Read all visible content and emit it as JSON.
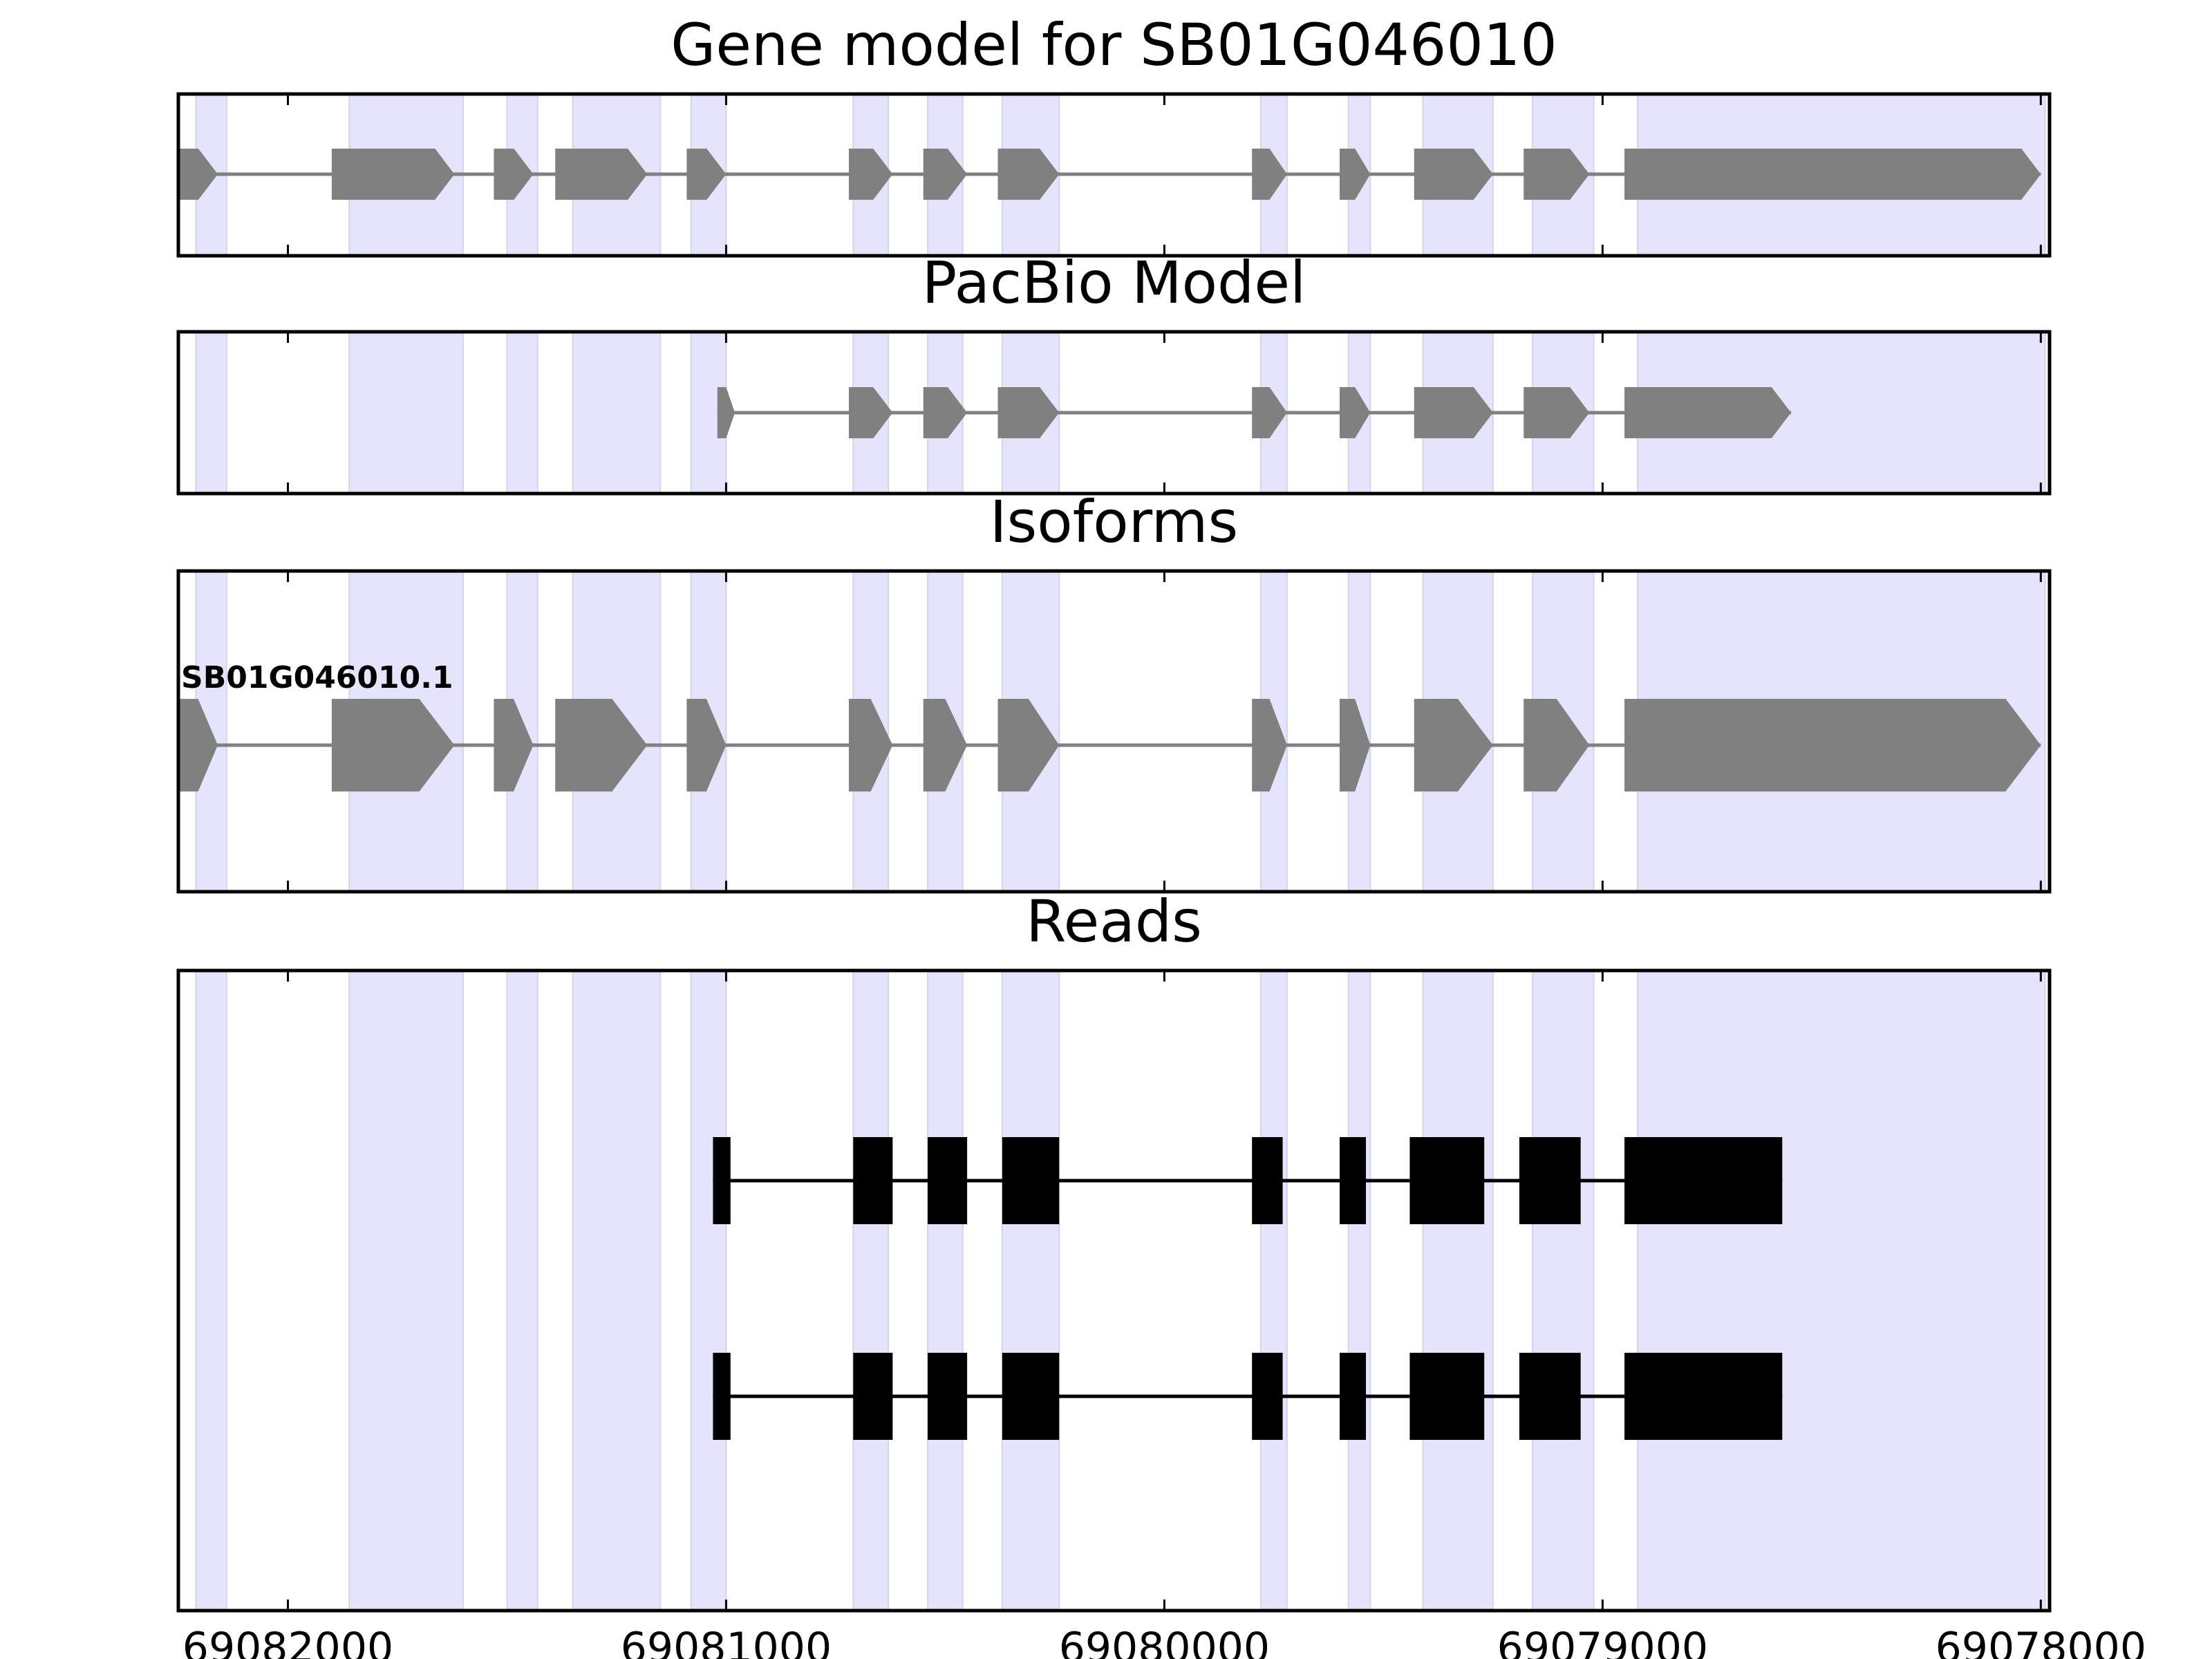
{
  "chart_data": {
    "type": "gene-model-track",
    "x_axis": {
      "min": 69082250,
      "max": 69077980,
      "reversed": true,
      "ticks": [
        69082000,
        69081000,
        69080000,
        69079000,
        69078000
      ],
      "tick_labels": [
        "69082000",
        "69081000",
        "69080000",
        "69079000",
        "69078000"
      ]
    },
    "exon_regions": [
      [
        69082210,
        69082140
      ],
      [
        69081860,
        69081600
      ],
      [
        69081500,
        69081430
      ],
      [
        69081350,
        69081150
      ],
      [
        69081080,
        69081000
      ],
      [
        69080710,
        69080630
      ],
      [
        69080540,
        69080460
      ],
      [
        69080370,
        69080240
      ],
      [
        69079780,
        69079720
      ],
      [
        69079580,
        69079530
      ],
      [
        69079410,
        69079250
      ],
      [
        69079160,
        69079020
      ],
      [
        69078920,
        69077990
      ]
    ],
    "colors": {
      "exon_region": "#e4e4fc",
      "gene_feature": "#808080",
      "read_feature": "#000000"
    },
    "panels": [
      {
        "title": "Gene model for SB01G046010",
        "feature_style": "arrow",
        "tracks": [
          {
            "label": "",
            "exons": [
              [
                69082250,
                69082160
              ],
              [
                69081900,
                69081620
              ],
              [
                69081530,
                69081440
              ],
              [
                69081390,
                69081180
              ],
              [
                69081090,
                69081000
              ],
              [
                69080720,
                69080620
              ],
              [
                69080550,
                69080450
              ],
              [
                69080380,
                69080240
              ],
              [
                69079800,
                69079720
              ],
              [
                69079600,
                69079530
              ],
              [
                69079430,
                69079250
              ],
              [
                69079180,
                69079030
              ],
              [
                69078950,
                69078000
              ]
            ]
          }
        ]
      },
      {
        "title": "PacBio Model",
        "feature_style": "arrow",
        "tracks": [
          {
            "label": "",
            "exons": [
              [
                69081020,
                69080980
              ],
              [
                69080720,
                69080620
              ],
              [
                69080550,
                69080450
              ],
              [
                69080380,
                69080240
              ],
              [
                69079800,
                69079720
              ],
              [
                69079600,
                69079530
              ],
              [
                69079430,
                69079250
              ],
              [
                69079180,
                69079030
              ],
              [
                69078950,
                69078570
              ]
            ]
          }
        ]
      },
      {
        "title": "Isoforms",
        "feature_style": "arrow",
        "tracks": [
          {
            "label": "SB01G046010.1",
            "exons": [
              [
                69082250,
                69082160
              ],
              [
                69081900,
                69081620
              ],
              [
                69081530,
                69081440
              ],
              [
                69081390,
                69081180
              ],
              [
                69081090,
                69081000
              ],
              [
                69080720,
                69080620
              ],
              [
                69080550,
                69080450
              ],
              [
                69080380,
                69080240
              ],
              [
                69079800,
                69079720
              ],
              [
                69079600,
                69079530
              ],
              [
                69079430,
                69079250
              ],
              [
                69079180,
                69079030
              ],
              [
                69078950,
                69078000
              ]
            ]
          }
        ]
      },
      {
        "title": "Reads",
        "feature_style": "box",
        "tracks": [
          {
            "label": "",
            "exons": [
              [
                69081030,
                69080990
              ],
              [
                69080710,
                69080620
              ],
              [
                69080540,
                69080450
              ],
              [
                69080370,
                69080240
              ],
              [
                69079800,
                69079730
              ],
              [
                69079600,
                69079540
              ],
              [
                69079440,
                69079270
              ],
              [
                69079190,
                69079050
              ],
              [
                69078950,
                69078590
              ]
            ]
          },
          {
            "label": "",
            "exons": [
              [
                69081030,
                69080990
              ],
              [
                69080710,
                69080620
              ],
              [
                69080540,
                69080450
              ],
              [
                69080370,
                69080240
              ],
              [
                69079800,
                69079730
              ],
              [
                69079600,
                69079540
              ],
              [
                69079440,
                69079270
              ],
              [
                69079190,
                69079050
              ],
              [
                69078950,
                69078590
              ]
            ]
          }
        ]
      }
    ]
  }
}
